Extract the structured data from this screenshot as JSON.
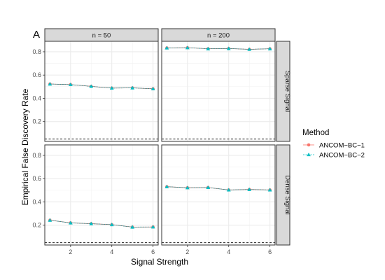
{
  "chart_data": {
    "type": "line",
    "tag": "A",
    "xlabel": "Signal Strength",
    "ylabel": "Empirical False Discovery Rate",
    "x": [
      1,
      2,
      3,
      4,
      5,
      6
    ],
    "x_ticks": [
      2,
      4,
      6
    ],
    "x_tick_labels": [
      "2",
      "4",
      "6"
    ],
    "xlim": [
      0.75,
      6.25
    ],
    "ylim": [
      0.03,
      0.89
    ],
    "y_ticks": [
      0.2,
      0.4,
      0.6,
      0.8
    ],
    "y_tick_labels": [
      "0.2",
      "0.4",
      "0.6",
      "0.8"
    ],
    "reference_line": 0.05,
    "columns": [
      "n = 50",
      "n = 200"
    ],
    "rows": [
      "Sparse Signal",
      "Dense Signal"
    ],
    "grid": true,
    "legend": {
      "title": "Method",
      "position": "right",
      "entries": [
        "ANCOM−BC−1",
        "ANCOM−BC−2"
      ]
    },
    "series_colors": [
      "#F8766D",
      "#00BFC4"
    ],
    "panels": [
      {
        "column": "n = 50",
        "row": "Sparse Signal",
        "series": [
          {
            "name": "ANCOM−BC−1",
            "values": [
              0.523,
              0.518,
              0.503,
              0.488,
              0.49,
              0.482
            ]
          },
          {
            "name": "ANCOM−BC−2",
            "values": [
              0.523,
              0.518,
              0.503,
              0.488,
              0.49,
              0.482
            ]
          }
        ]
      },
      {
        "column": "n = 200",
        "row": "Sparse Signal",
        "series": [
          {
            "name": "ANCOM−BC−1",
            "values": [
              0.833,
              0.835,
              0.826,
              0.828,
              0.821,
              0.826
            ]
          },
          {
            "name": "ANCOM−BC−2",
            "values": [
              0.833,
              0.835,
              0.826,
              0.828,
              0.821,
              0.826
            ]
          }
        ]
      },
      {
        "column": "n = 50",
        "row": "Dense Signal",
        "series": [
          {
            "name": "ANCOM−BC−1",
            "values": [
              0.243,
              0.22,
              0.213,
              0.205,
              0.184,
              0.185
            ]
          },
          {
            "name": "ANCOM−BC−2",
            "values": [
              0.243,
              0.22,
              0.213,
              0.205,
              0.184,
              0.185
            ]
          }
        ]
      },
      {
        "column": "n = 200",
        "row": "Dense Signal",
        "series": [
          {
            "name": "ANCOM−BC−1",
            "values": [
              0.531,
              0.522,
              0.524,
              0.503,
              0.507,
              0.503
            ]
          },
          {
            "name": "ANCOM−BC−2",
            "values": [
              0.531,
              0.522,
              0.524,
              0.503,
              0.507,
              0.503
            ]
          }
        ]
      }
    ]
  }
}
